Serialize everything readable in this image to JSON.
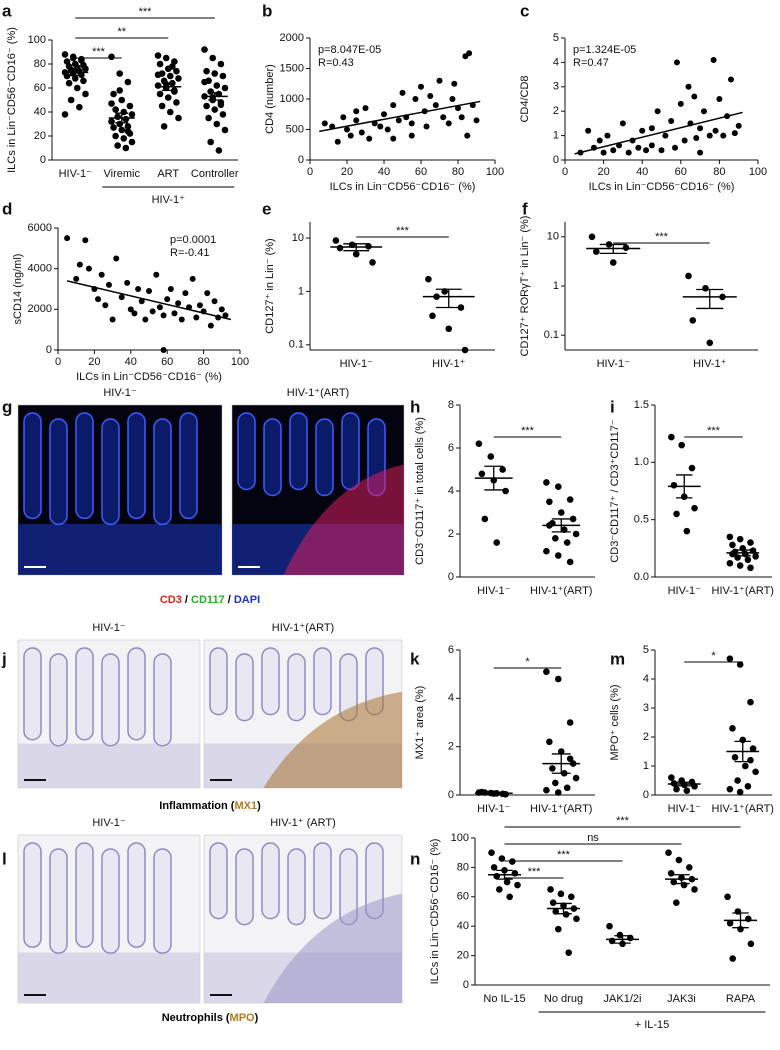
{
  "chart_data": [
    {
      "panel": "a",
      "type": "strip",
      "y_label": "ILCs in Lin⁻CD56⁻CD16⁻ (%)",
      "categories": [
        "HIV-1⁻",
        "Viremic",
        "ART",
        "Controller"
      ],
      "values": [
        [
          88,
          85,
          84,
          82,
          80,
          79,
          78,
          77,
          76,
          75,
          74,
          73,
          72,
          71,
          70,
          68,
          66,
          64,
          60,
          55,
          50,
          44,
          38,
          86,
          83
        ],
        [
          86,
          72,
          65,
          55,
          50,
          45,
          42,
          40,
          38,
          36,
          34,
          32,
          30,
          28,
          27,
          25,
          22,
          20,
          18,
          15,
          12,
          10,
          47,
          58,
          24
        ],
        [
          87,
          85,
          82,
          80,
          76,
          74,
          72,
          70,
          68,
          66,
          64,
          62,
          60,
          58,
          55,
          52,
          48,
          45,
          40,
          35,
          28,
          78,
          71,
          63,
          57
        ],
        [
          92,
          85,
          80,
          74,
          72,
          70,
          66,
          62,
          60,
          57,
          55,
          53,
          50,
          48,
          45,
          42,
          38,
          35,
          30,
          25,
          15,
          8,
          65,
          52,
          46
        ]
      ],
      "mean": [
        73,
        35,
        61,
        53
      ],
      "sem": [
        2.5,
        4,
        3,
        3
      ],
      "ylim": [
        0,
        100
      ],
      "yticks": [
        0,
        20,
        40,
        60,
        80,
        100
      ],
      "group": {
        "label": "HIV-1⁺",
        "categories": [
          "Viremic",
          "ART",
          "Controller"
        ]
      },
      "comparisons": [
        {
          "groups": [
            "HIV-1⁻",
            "Controller"
          ],
          "label": "***"
        },
        {
          "groups": [
            "HIV-1⁻",
            "ART"
          ],
          "label": "**"
        },
        {
          "groups": [
            "HIV-1⁻",
            "Viremic"
          ],
          "label": "***"
        }
      ]
    },
    {
      "panel": "b",
      "type": "scatter",
      "x_label": "ILCs in Lin⁻CD56⁻CD16⁻ (%)",
      "y_label": "CD4 (number)",
      "x": [
        8,
        12,
        15,
        18,
        20,
        22,
        25,
        28,
        30,
        32,
        35,
        38,
        40,
        42,
        45,
        48,
        50,
        52,
        55,
        57,
        60,
        62,
        63,
        65,
        68,
        70,
        72,
        75,
        77,
        78,
        80,
        82,
        84,
        85,
        86,
        88,
        90,
        45,
        55,
        25
      ],
      "y": [
        600,
        550,
        300,
        700,
        500,
        400,
        650,
        450,
        850,
        350,
        600,
        550,
        750,
        500,
        900,
        650,
        1100,
        700,
        600,
        1000,
        1200,
        800,
        550,
        1050,
        900,
        1300,
        700,
        600,
        1000,
        1250,
        850,
        700,
        1700,
        400,
        1750,
        900,
        650,
        350,
        400,
        800
      ],
      "fit_line": {
        "x": [
          5,
          92
        ],
        "y": [
          470,
          960
        ]
      },
      "annotations": [
        "p=8.047E-05",
        "R=0.43"
      ],
      "annotation_corner": "top-left",
      "xlim": [
        0,
        100
      ],
      "xticks": [
        0,
        20,
        40,
        60,
        80,
        100
      ],
      "ylim": [
        0,
        2000
      ],
      "yticks": [
        0,
        500,
        1000,
        1500,
        2000
      ]
    },
    {
      "panel": "c",
      "type": "scatter",
      "x_label": "ILCs in Lin⁻CD56⁻CD16⁻ (%)",
      "y_label": "CD4/CD8",
      "x": [
        8,
        12,
        15,
        18,
        20,
        22,
        25,
        28,
        30,
        33,
        35,
        38,
        40,
        42,
        45,
        48,
        50,
        52,
        55,
        57,
        60,
        62,
        64,
        65,
        67,
        68,
        70,
        72,
        75,
        77,
        78,
        80,
        82,
        84,
        86,
        88,
        90,
        58,
        45,
        70
      ],
      "y": [
        0.3,
        1.2,
        0.5,
        0.8,
        0.3,
        1.0,
        0.4,
        0.6,
        1.5,
        0.3,
        0.8,
        0.5,
        1.2,
        0.4,
        0.6,
        2.0,
        0.4,
        1.0,
        1.6,
        0.5,
        2.3,
        0.8,
        3.0,
        1.5,
        2.6,
        0.9,
        1.3,
        2.0,
        1.0,
        4.1,
        1.2,
        2.5,
        1.0,
        1.8,
        3.3,
        1.1,
        1.4,
        4.0,
        1.3,
        0.3
      ],
      "fit_line": {
        "x": [
          5,
          92
        ],
        "y": [
          0.25,
          1.95
        ]
      },
      "annotations": [
        "p=1.324E-05",
        "R=0.47"
      ],
      "annotation_corner": "top-left",
      "xlim": [
        0,
        100
      ],
      "xticks": [
        0,
        20,
        40,
        60,
        80,
        100
      ],
      "ylim": [
        0,
        5
      ],
      "yticks": [
        0,
        1,
        2,
        3,
        4,
        5
      ]
    },
    {
      "panel": "d",
      "type": "scatter",
      "x_label": "ILCs in Lin⁻CD56⁻CD16⁻ (%)",
      "y_label": "sCD14 (ng/ml)",
      "x": [
        5,
        10,
        12,
        15,
        17,
        20,
        22,
        24,
        26,
        28,
        30,
        32,
        35,
        38,
        40,
        42,
        44,
        46,
        48,
        50,
        52,
        54,
        56,
        58,
        60,
        62,
        64,
        66,
        68,
        70,
        72,
        74,
        76,
        78,
        80,
        82,
        84,
        86,
        88,
        90,
        58,
        92
      ],
      "y": [
        5500,
        3500,
        4200,
        5400,
        4000,
        3000,
        2500,
        3700,
        2200,
        3200,
        1500,
        4500,
        2600,
        3300,
        2000,
        1800,
        3000,
        2400,
        1500,
        2900,
        1900,
        3700,
        2100,
        1700,
        2500,
        3000,
        1800,
        2300,
        1500,
        2800,
        2100,
        3500,
        1600,
        2200,
        1900,
        2800,
        1200,
        2400,
        1600,
        2000,
        0,
        1700
      ],
      "fit_line": {
        "x": [
          5,
          95
        ],
        "y": [
          3400,
          1500
        ]
      },
      "annotations": [
        "p=0.0001",
        "R=-0.41"
      ],
      "annotation_corner": "top-right",
      "xlim": [
        0,
        100
      ],
      "xticks": [
        0,
        20,
        40,
        60,
        80,
        100
      ],
      "ylim": [
        0,
        6000
      ],
      "yticks": [
        0,
        2000,
        4000,
        6000
      ]
    },
    {
      "panel": "e",
      "type": "strip",
      "y_label": "CD127⁺ in Lin⁻ (%)",
      "log": true,
      "categories": [
        "HIV-1⁻",
        "HIV-1⁺"
      ],
      "values": [
        [
          9,
          7.5,
          7,
          6.5,
          5,
          3.5
        ],
        [
          1.7,
          1.0,
          0.5,
          0.35,
          0.2,
          0.08,
          0.8
        ]
      ],
      "mean": [
        6.8,
        0.8
      ],
      "sem": [
        1.0,
        0.3
      ],
      "ylim": [
        0.08,
        20
      ],
      "yticks": [
        0.1,
        1,
        10
      ],
      "comparisons": [
        {
          "groups": [
            "HIV-1⁻",
            "HIV-1⁺"
          ],
          "label": "***"
        }
      ]
    },
    {
      "panel": "f",
      "type": "strip",
      "y_label": "CD127⁺ RORγT⁺ in Lin⁻ (%)",
      "log": true,
      "categories": [
        "HIV-1⁻",
        "HIV-1⁺"
      ],
      "values": [
        [
          10,
          7,
          6,
          5,
          3
        ],
        [
          1.6,
          0.9,
          0.6,
          0.2,
          0.07
        ]
      ],
      "mean": [
        5.8,
        0.6
      ],
      "sem": [
        1.2,
        0.25
      ],
      "ylim": [
        0.05,
        20
      ],
      "yticks": [
        0.1,
        1,
        10
      ],
      "comparisons": [
        {
          "groups": [
            "HIV-1⁻",
            "HIV-1⁺"
          ],
          "label": "***"
        }
      ]
    },
    {
      "panel": "h",
      "type": "strip",
      "y_label": "CD3⁻CD117⁺ in total cells (%)",
      "categories": [
        "HIV-1⁻",
        "HIV-1⁺(ART)"
      ],
      "values": [
        [
          6.2,
          5.6,
          5.0,
          4.8,
          4.5,
          4.0,
          2.7,
          1.6
        ],
        [
          4.4,
          4.2,
          3.6,
          3.5,
          3.0,
          2.7,
          2.5,
          2.2,
          2.0,
          1.8,
          1.6,
          1.2,
          1.0,
          0.7,
          2.4
        ]
      ],
      "mean": [
        4.6,
        2.4
      ],
      "sem": [
        0.55,
        0.3
      ],
      "ylim": [
        0,
        8
      ],
      "yticks": [
        0,
        2,
        4,
        6,
        8
      ],
      "comparisons": [
        {
          "groups": [
            "HIV-1⁻",
            "HIV-1⁺(ART)"
          ],
          "label": "***"
        }
      ]
    },
    {
      "panel": "i",
      "type": "strip",
      "y_label": "CD3⁻CD117⁺ / CD3⁺CD117⁻",
      "categories": [
        "HIV-1⁻",
        "HIV-1⁺(ART)"
      ],
      "values": [
        [
          1.22,
          1.15,
          0.95,
          0.8,
          0.7,
          0.6,
          0.55,
          0.4
        ],
        [
          0.35,
          0.33,
          0.3,
          0.28,
          0.25,
          0.23,
          0.22,
          0.2,
          0.18,
          0.17,
          0.15,
          0.12,
          0.1,
          0.08,
          0.2
        ]
      ],
      "mean": [
        0.79,
        0.21
      ],
      "sem": [
        0.1,
        0.025
      ],
      "ylim": [
        0,
        1.5
      ],
      "yticks": [
        {
          "value": 0,
          "label": "0.0"
        },
        0.5,
        {
          "value": 1,
          "label": "1.0"
        },
        1.5
      ],
      "comparisons": [
        {
          "groups": [
            "HIV-1⁻",
            "HIV-1⁺(ART)"
          ],
          "label": "***"
        }
      ]
    },
    {
      "panel": "k",
      "type": "strip",
      "y_label": "MX1⁺ area (%)",
      "categories": [
        "HIV-1⁻",
        "HIV-1⁺(ART)"
      ],
      "values": [
        [
          0.1,
          0.08,
          0.05,
          0.12,
          0.06,
          0.03,
          0.1,
          0.07
        ],
        [
          5.1,
          4.8,
          3.0,
          2.2,
          1.8,
          1.3,
          1.1,
          0.9,
          0.7,
          0.5,
          0.3,
          0.2,
          0.1,
          1.5
        ]
      ],
      "mean": [
        0.07,
        1.3
      ],
      "sem": [
        0.02,
        0.4
      ],
      "ylim": [
        0,
        6
      ],
      "yticks": [
        0,
        2,
        4,
        6
      ],
      "comparisons": [
        {
          "groups": [
            "HIV-1⁻",
            "HIV-1⁺(ART)"
          ],
          "label": "*"
        }
      ]
    },
    {
      "panel": "m",
      "type": "strip",
      "y_label": "MPO⁺ cells (%)",
      "categories": [
        "HIV-1⁻",
        "HIV-1⁺(ART)"
      ],
      "values": [
        [
          0.6,
          0.5,
          0.45,
          0.4,
          0.35,
          0.3,
          0.2,
          0.15
        ],
        [
          4.7,
          4.5,
          3.2,
          2.3,
          1.9,
          1.6,
          1.3,
          1.0,
          0.8,
          0.5,
          0.3,
          0.2,
          0.1,
          1.2
        ]
      ],
      "mean": [
        0.38,
        1.5
      ],
      "sem": [
        0.06,
        0.35
      ],
      "ylim": [
        0,
        5
      ],
      "yticks": [
        0,
        1,
        2,
        3,
        4,
        5
      ],
      "comparisons": [
        {
          "groups": [
            "HIV-1⁻",
            "HIV-1⁺(ART)"
          ],
          "label": "*"
        }
      ]
    },
    {
      "panel": "n",
      "type": "strip",
      "y_label": "ILCs in Lin⁻CD56⁻CD16⁻ (%)",
      "categories": [
        "No IL-15",
        "No drug",
        "JAK1/2i",
        "JAK3i",
        "RAPA"
      ],
      "values": [
        [
          90,
          86,
          84,
          80,
          78,
          76,
          74,
          70,
          68,
          65,
          60
        ],
        [
          65,
          62,
          60,
          56,
          54,
          52,
          50,
          48,
          45,
          38,
          22
        ],
        [
          40,
          34,
          32,
          30,
          28
        ],
        [
          90,
          85,
          80,
          76,
          73,
          72,
          70,
          68,
          65,
          56
        ],
        [
          60,
          50,
          45,
          42,
          38,
          28,
          18
        ]
      ],
      "mean": [
        75,
        52,
        31,
        72,
        44
      ],
      "sem": [
        3,
        3.5,
        2.5,
        3,
        5
      ],
      "ylim": [
        0,
        100
      ],
      "yticks": [
        0,
        20,
        40,
        60,
        80,
        100
      ],
      "group": {
        "label": "+ IL-15",
        "categories": [
          "No drug",
          "JAK1/2i",
          "JAK3i",
          "RAPA"
        ]
      },
      "comparisons": [
        {
          "groups": [
            "No IL-15",
            "RAPA"
          ],
          "label": "***"
        },
        {
          "groups": [
            "No IL-15",
            "JAK3i"
          ],
          "label": "ns"
        },
        {
          "groups": [
            "No IL-15",
            "JAK1/2i"
          ],
          "label": "***"
        },
        {
          "groups": [
            "No IL-15",
            "No drug"
          ],
          "label": "***"
        }
      ]
    }
  ],
  "image_panels": [
    {
      "panel": "g",
      "kind": "fluorescence",
      "labels": [
        "HIV-1⁻",
        "HIV-1⁺(ART)"
      ],
      "caption": [
        {
          "text": "CD3",
          "color": "#e3201b"
        },
        {
          "text": " / ",
          "color": "#000000"
        },
        {
          "text": "CD117",
          "color": "#22b022"
        },
        {
          "text": " / ",
          "color": "#000000"
        },
        {
          "text": "DAPI",
          "color": "#1f2fd0"
        }
      ]
    },
    {
      "panel": "j",
      "kind": "ihc-mx1",
      "labels": [
        "HIV-1⁻",
        "HIV-1⁺(ART)"
      ],
      "caption": [
        {
          "text": "Inflammation (",
          "color": "#000000"
        },
        {
          "text": "MX1",
          "color": "#b07a1e"
        },
        {
          "text": ")",
          "color": "#000000"
        }
      ]
    },
    {
      "panel": "l",
      "kind": "ihc-mpo",
      "labels": [
        "HIV-1⁻",
        "HIV-1⁺ (ART)"
      ],
      "caption": [
        {
          "text": "Neutrophils (",
          "color": "#000000"
        },
        {
          "text": "MPO",
          "color": "#b07a1e"
        },
        {
          "text": ")",
          "color": "#000000"
        }
      ]
    }
  ]
}
